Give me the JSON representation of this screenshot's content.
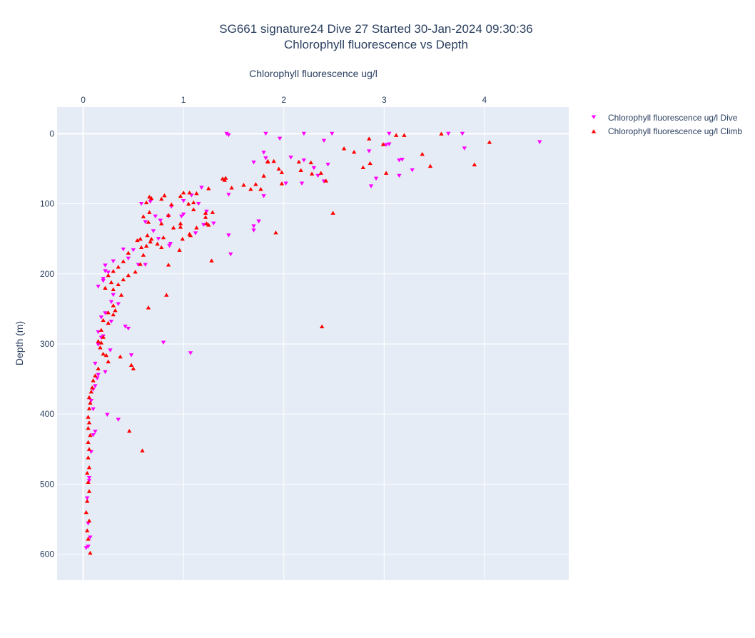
{
  "chart_data": {
    "type": "scatter",
    "title_lines": [
      "SG661 signature24 Dive 27 Started 30-Jan-2024 09:30:36",
      "Chlorophyll fluorescence vs Depth"
    ],
    "xlabel": "Chlorophyll fluorescence ug/l",
    "ylabel": "Depth (m)",
    "xlim": [
      -0.26,
      4.84
    ],
    "ylim": [
      -38,
      637
    ],
    "y_reversed": true,
    "x_axis_side": "top",
    "x_ticks": [
      "0",
      "1",
      "2",
      "3",
      "4"
    ],
    "x_tick_values": [
      0,
      1,
      2,
      3,
      4
    ],
    "y_ticks": [
      "0",
      "100",
      "200",
      "300",
      "400",
      "500",
      "600"
    ],
    "y_tick_values": [
      0,
      100,
      200,
      300,
      400,
      500,
      600
    ],
    "grid": true,
    "legend_position": "top-right",
    "series": [
      {
        "name": "Chlorophyll fluorescence ug/l Dive",
        "color": "#ff00ff",
        "marker": "triangle-down",
        "points": [
          [
            1.43,
            0
          ],
          [
            1.45,
            2
          ],
          [
            1.82,
            0
          ],
          [
            2.2,
            0
          ],
          [
            2.48,
            0
          ],
          [
            3.05,
            0
          ],
          [
            3.64,
            0
          ],
          [
            3.78,
            0
          ],
          [
            4.55,
            12
          ],
          [
            1.96,
            7
          ],
          [
            2.4,
            10
          ],
          [
            3.8,
            21
          ],
          [
            2.85,
            25
          ],
          [
            3.18,
            37
          ],
          [
            3.28,
            52
          ],
          [
            3.02,
            16
          ],
          [
            1.8,
            27
          ],
          [
            1.82,
            35
          ],
          [
            1.7,
            41
          ],
          [
            2.07,
            34
          ],
          [
            2.2,
            38
          ],
          [
            2.3,
            49
          ],
          [
            2.44,
            44
          ],
          [
            2.34,
            60
          ],
          [
            2.4,
            68
          ],
          [
            2.02,
            71
          ],
          [
            2.18,
            71
          ],
          [
            2.87,
            75
          ],
          [
            2.92,
            64
          ],
          [
            3.05,
            15
          ],
          [
            3.15,
            38
          ],
          [
            3.15,
            60
          ],
          [
            1.45,
            87
          ],
          [
            1.8,
            89
          ],
          [
            1.18,
            77
          ],
          [
            1.08,
            88
          ],
          [
            0.88,
            104
          ],
          [
            1.0,
            96
          ],
          [
            1.15,
            100
          ],
          [
            1.23,
            111
          ],
          [
            1.3,
            128
          ],
          [
            1.45,
            145
          ],
          [
            1.7,
            132
          ],
          [
            1.75,
            125
          ],
          [
            1.7,
            138
          ],
          [
            1.75,
            125
          ],
          [
            1.2,
            130
          ],
          [
            1.0,
            115
          ],
          [
            0.98,
            118
          ],
          [
            0.85,
            118
          ],
          [
            0.77,
            124
          ],
          [
            0.72,
            118
          ],
          [
            0.67,
            97
          ],
          [
            0.58,
            100
          ],
          [
            0.62,
            126
          ],
          [
            0.7,
            139
          ],
          [
            0.86,
            160
          ],
          [
            1.12,
            142
          ],
          [
            1.47,
            172
          ],
          [
            0.4,
            165
          ],
          [
            0.45,
            178
          ],
          [
            0.55,
            187
          ],
          [
            0.3,
            182
          ],
          [
            0.22,
            188
          ],
          [
            0.22,
            196
          ],
          [
            0.25,
            198
          ],
          [
            0.2,
            210
          ],
          [
            0.2,
            207
          ],
          [
            0.15,
            218
          ],
          [
            0.3,
            230
          ],
          [
            0.28,
            240
          ],
          [
            0.35,
            243
          ],
          [
            0.22,
            256
          ],
          [
            0.18,
            262
          ],
          [
            0.28,
            268
          ],
          [
            0.42,
            275
          ],
          [
            0.45,
            278
          ],
          [
            0.15,
            283
          ],
          [
            0.18,
            291
          ],
          [
            0.2,
            289
          ],
          [
            0.15,
            301
          ],
          [
            0.27,
            309
          ],
          [
            0.48,
            316
          ],
          [
            0.12,
            328
          ],
          [
            0.22,
            340
          ],
          [
            0.15,
            344
          ],
          [
            0.14,
            349
          ],
          [
            0.12,
            360
          ],
          [
            0.1,
            365
          ],
          [
            0.08,
            381
          ],
          [
            0.1,
            393
          ],
          [
            0.24,
            401
          ],
          [
            0.35,
            408
          ],
          [
            0.12,
            425
          ],
          [
            0.1,
            430
          ],
          [
            0.08,
            454
          ],
          [
            0.06,
            491
          ],
          [
            0.06,
            495
          ],
          [
            0.04,
            520
          ],
          [
            0.05,
            556
          ],
          [
            0.07,
            576
          ],
          [
            0.03,
            591
          ],
          [
            0.05,
            589
          ],
          [
            0.8,
            298
          ],
          [
            1.07,
            313
          ],
          [
            0.75,
            150
          ],
          [
            0.62,
            187
          ],
          [
            0.87,
            157
          ],
          [
            0.5,
            166
          ]
        ]
      },
      {
        "name": "Chlorophyll fluorescence ug/l Climb",
        "color": "#ff0000",
        "marker": "triangle-up",
        "points": [
          [
            3.57,
            0
          ],
          [
            3.12,
            2
          ],
          [
            3.2,
            2
          ],
          [
            4.05,
            12
          ],
          [
            2.85,
            7
          ],
          [
            2.99,
            15
          ],
          [
            2.6,
            21
          ],
          [
            2.7,
            26
          ],
          [
            2.86,
            42
          ],
          [
            2.79,
            48
          ],
          [
            3.38,
            29
          ],
          [
            3.46,
            46
          ],
          [
            3.02,
            56
          ],
          [
            3.9,
            44
          ],
          [
            2.15,
            40
          ],
          [
            1.84,
            39
          ],
          [
            1.9,
            39
          ],
          [
            2.27,
            41
          ],
          [
            2.17,
            52
          ],
          [
            2.28,
            57
          ],
          [
            2.37,
            56
          ],
          [
            2.42,
            67
          ],
          [
            1.8,
            60
          ],
          [
            1.95,
            50
          ],
          [
            1.98,
            55
          ],
          [
            1.98,
            71
          ],
          [
            1.84,
            40
          ],
          [
            1.72,
            72
          ],
          [
            1.67,
            79
          ],
          [
            1.77,
            79
          ],
          [
            1.6,
            73
          ],
          [
            1.41,
            66
          ],
          [
            1.42,
            63
          ],
          [
            1.48,
            77
          ],
          [
            1.25,
            78
          ],
          [
            1.13,
            85
          ],
          [
            1.06,
            84
          ],
          [
            1.0,
            84
          ],
          [
            0.97,
            89
          ],
          [
            1.05,
            100
          ],
          [
            1.1,
            108
          ],
          [
            1.22,
            113
          ],
          [
            1.29,
            112
          ],
          [
            1.25,
            130
          ],
          [
            1.23,
            128
          ],
          [
            1.13,
            134
          ],
          [
            1.07,
            145
          ],
          [
            1.06,
            143
          ],
          [
            0.97,
            128
          ],
          [
            0.97,
            133
          ],
          [
            0.96,
            166
          ],
          [
            0.9,
            134
          ],
          [
            0.78,
            128
          ],
          [
            0.85,
            116
          ],
          [
            0.88,
            101
          ],
          [
            0.78,
            93
          ],
          [
            0.81,
            88
          ],
          [
            0.66,
            90
          ],
          [
            0.68,
            92
          ],
          [
            0.63,
            98
          ],
          [
            0.66,
            112
          ],
          [
            0.6,
            118
          ],
          [
            0.65,
            126
          ],
          [
            0.57,
            150
          ],
          [
            0.64,
            145
          ],
          [
            0.68,
            150
          ],
          [
            0.63,
            160
          ],
          [
            0.67,
            154
          ],
          [
            0.74,
            157
          ],
          [
            0.78,
            162
          ],
          [
            0.8,
            148
          ],
          [
            0.99,
            150
          ],
          [
            0.85,
            187
          ],
          [
            0.57,
            186
          ],
          [
            0.52,
            197
          ],
          [
            0.6,
            173
          ],
          [
            0.45,
            170
          ],
          [
            0.4,
            182
          ],
          [
            0.35,
            190
          ],
          [
            0.3,
            196
          ],
          [
            0.25,
            202
          ],
          [
            0.28,
            212
          ],
          [
            0.22,
            220
          ],
          [
            0.3,
            222
          ],
          [
            0.35,
            215
          ],
          [
            0.4,
            208
          ],
          [
            0.45,
            202
          ],
          [
            0.38,
            230
          ],
          [
            0.3,
            245
          ],
          [
            0.25,
            255
          ],
          [
            0.3,
            258
          ],
          [
            0.2,
            266
          ],
          [
            0.25,
            270
          ],
          [
            0.32,
            252
          ],
          [
            0.18,
            280
          ],
          [
            0.2,
            290
          ],
          [
            0.15,
            296
          ],
          [
            0.18,
            298
          ],
          [
            0.17,
            305
          ],
          [
            0.2,
            314
          ],
          [
            0.23,
            316
          ],
          [
            0.25,
            325
          ],
          [
            0.15,
            335
          ],
          [
            0.12,
            345
          ],
          [
            0.1,
            352
          ],
          [
            0.09,
            362
          ],
          [
            0.08,
            368
          ],
          [
            0.06,
            376
          ],
          [
            0.07,
            384
          ],
          [
            0.06,
            392
          ],
          [
            0.05,
            404
          ],
          [
            0.06,
            412
          ],
          [
            0.05,
            420
          ],
          [
            0.07,
            430
          ],
          [
            0.05,
            440
          ],
          [
            0.06,
            450
          ],
          [
            0.05,
            462
          ],
          [
            0.06,
            476
          ],
          [
            0.04,
            484
          ],
          [
            0.05,
            497
          ],
          [
            0.06,
            510
          ],
          [
            0.04,
            524
          ],
          [
            0.03,
            540
          ],
          [
            0.06,
            552
          ],
          [
            0.04,
            566
          ],
          [
            0.05,
            578
          ],
          [
            0.07,
            598
          ],
          [
            2.38,
            275
          ],
          [
            2.49,
            113
          ],
          [
            0.83,
            230
          ],
          [
            0.65,
            248
          ],
          [
            0.59,
            452
          ],
          [
            0.46,
            424
          ],
          [
            0.48,
            330
          ],
          [
            0.5,
            335
          ],
          [
            0.37,
            318
          ],
          [
            1.39,
            64
          ],
          [
            1.1,
            98
          ],
          [
            0.54,
            152
          ],
          [
            0.58,
            162
          ],
          [
            1.28,
            181
          ],
          [
            1.22,
            119
          ],
          [
            1.92,
            141
          ]
        ]
      }
    ]
  }
}
